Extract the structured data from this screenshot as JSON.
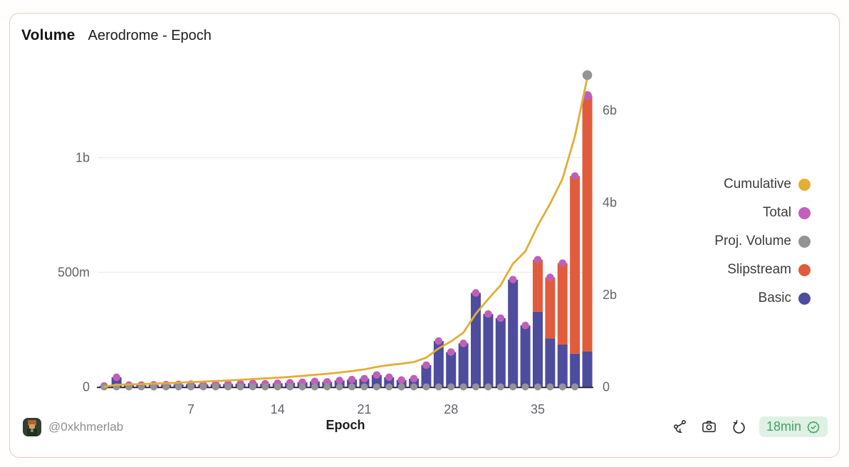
{
  "header": {
    "title": "Volume",
    "subtitle": "Aerodrome - Epoch"
  },
  "legend": {
    "items": [
      {
        "label": "Cumulative",
        "color": "#E2AE35"
      },
      {
        "label": "Total",
        "color": "#C45FBE"
      },
      {
        "label": "Proj. Volume",
        "color": "#949494"
      },
      {
        "label": "Slipstream",
        "color": "#E05C3C"
      },
      {
        "label": "Basic",
        "color": "#4D4C9D"
      }
    ]
  },
  "footer": {
    "author_handle": "@0xkhmerlab",
    "refresh_age": "18min",
    "icons": [
      "fork-icon",
      "camera-icon",
      "refresh-icon",
      "verified-seal-icon"
    ]
  },
  "colors": {
    "card_border": "#F2C5BB",
    "grid": "#ECECEC",
    "axis_line": "#2B2B40",
    "tick_text": "#63636E",
    "badge_bg": "#DFF0E4",
    "badge_text": "#3EA463",
    "icon_stroke": "#2B2B2B"
  },
  "chart_data": {
    "type": "bar",
    "overlays": [
      "line",
      "scatter"
    ],
    "title": "Volume Aerodrome - Epoch",
    "xlabel": "Epoch",
    "value_unit": "millions",
    "x": [
      0,
      1,
      2,
      3,
      4,
      5,
      6,
      7,
      8,
      9,
      10,
      11,
      12,
      13,
      14,
      15,
      16,
      17,
      18,
      19,
      20,
      21,
      22,
      23,
      24,
      25,
      26,
      27,
      28,
      29,
      30,
      31,
      32,
      33,
      34,
      35,
      36,
      37,
      38,
      39
    ],
    "x_tick_values": [
      7,
      14,
      21,
      28,
      35
    ],
    "x_tick_labels": [
      "7",
      "14",
      "21",
      "28",
      "35"
    ],
    "left_axis": {
      "tick_labels": [
        "0",
        "500m",
        "1b"
      ],
      "tick_values": [
        0,
        500,
        1000
      ],
      "range": [
        0,
        1300
      ]
    },
    "right_axis": {
      "tick_labels": [
        "0",
        "2b",
        "4b",
        "6b"
      ],
      "tick_values": [
        0,
        2000,
        4000,
        6000
      ],
      "range": [
        0,
        6800
      ]
    },
    "series": [
      {
        "name": "Basic",
        "kind": "bar",
        "stack": "volume",
        "axis": "left",
        "color": "#4D4C9D",
        "values": [
          4,
          42,
          8,
          8,
          9,
          10,
          11,
          12,
          11,
          12,
          13,
          14,
          16,
          14,
          16,
          18,
          20,
          24,
          22,
          28,
          32,
          36,
          52,
          42,
          30,
          36,
          95,
          200,
          152,
          190,
          410,
          318,
          300,
          468,
          268,
          328,
          212,
          185,
          145,
          155
        ]
      },
      {
        "name": "Slipstream",
        "kind": "bar",
        "stack": "volume",
        "axis": "left",
        "color": "#E05C3C",
        "values": [
          0,
          0,
          0,
          0,
          0,
          0,
          0,
          0,
          0,
          0,
          0,
          0,
          0,
          0,
          0,
          0,
          0,
          0,
          0,
          0,
          0,
          0,
          0,
          0,
          0,
          0,
          0,
          0,
          0,
          0,
          0,
          0,
          0,
          0,
          0,
          227,
          266,
          355,
          775,
          1115
        ]
      },
      {
        "name": "Total",
        "kind": "scatter",
        "axis": "left",
        "color": "#C05FB9",
        "values": [
          4,
          42,
          8,
          8,
          9,
          10,
          11,
          12,
          11,
          12,
          13,
          14,
          16,
          14,
          16,
          18,
          20,
          24,
          22,
          28,
          32,
          36,
          52,
          42,
          30,
          36,
          95,
          200,
          152,
          190,
          410,
          318,
          300,
          468,
          268,
          555,
          478,
          540,
          920,
          1270
        ]
      },
      {
        "name": "Proj. Volume",
        "kind": "scatter",
        "axis": "left",
        "color": "#949494",
        "values": [
          0,
          0,
          0,
          0,
          0,
          0,
          0,
          0,
          0,
          0,
          0,
          0,
          0,
          0,
          0,
          0,
          0,
          0,
          0,
          0,
          0,
          0,
          0,
          0,
          0,
          0,
          0,
          0,
          0,
          0,
          0,
          0,
          0,
          0,
          0,
          0,
          0,
          0,
          0,
          1360
        ]
      },
      {
        "name": "Cumulative",
        "kind": "line",
        "axis": "right",
        "color": "#E2AE35",
        "values": [
          4,
          46,
          54,
          62,
          71,
          81,
          92,
          104,
          115,
          127,
          140,
          154,
          170,
          184,
          200,
          218,
          238,
          262,
          284,
          312,
          344,
          380,
          432,
          474,
          504,
          540,
          635,
          835,
          987,
          1177,
          1587,
          1905,
          2205,
          2673,
          2941,
          3496,
          3974,
          4514,
          5434,
          6704
        ]
      }
    ]
  }
}
